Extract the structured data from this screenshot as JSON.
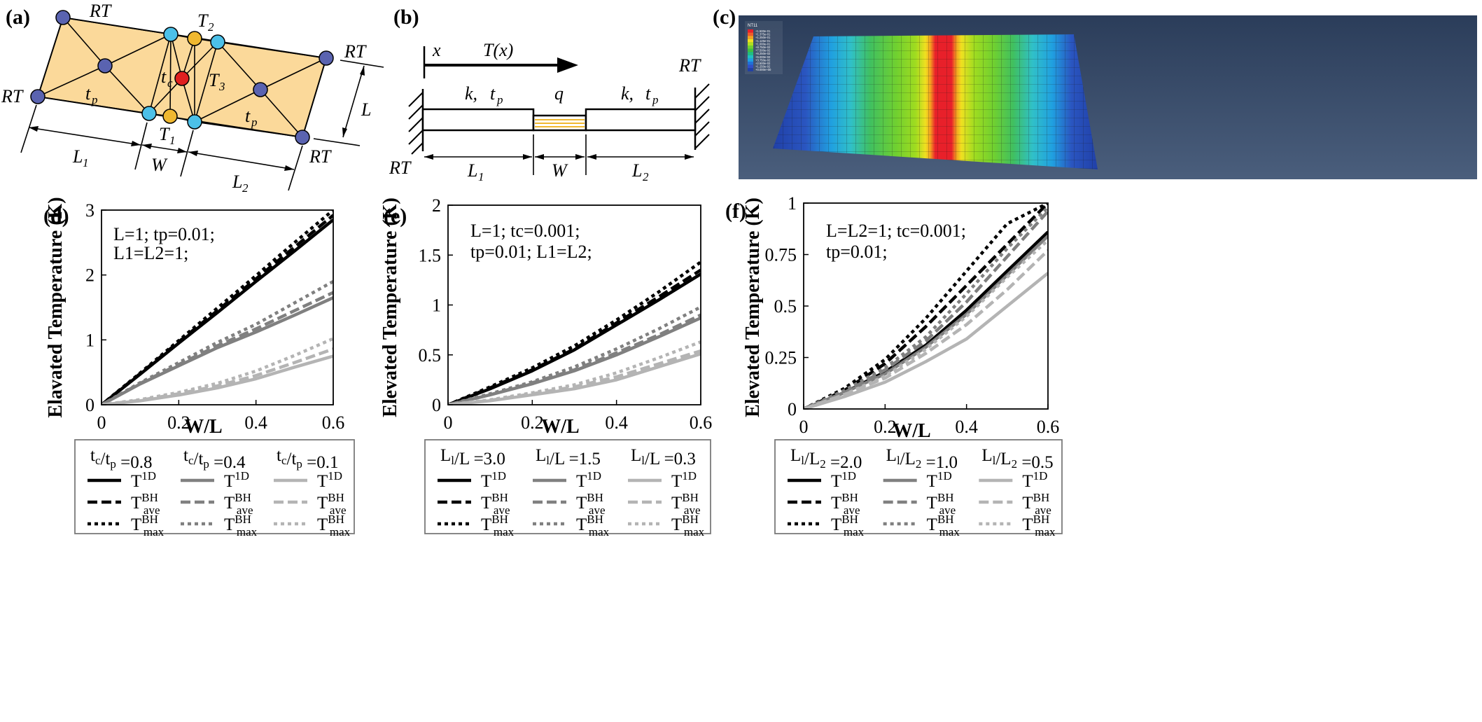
{
  "panels": {
    "a": {
      "label": "(a)",
      "texts": {
        "rt_top": "RT",
        "rt_left": "RT",
        "rt_right_top": "RT",
        "rt_right_bottom": "RT",
        "t2": "T",
        "t2_sub": "2",
        "t3": "T",
        "t3_sub": "3",
        "t1": "T",
        "t1_sub": "1",
        "tc": "t",
        "tc_sub": "c",
        "tp_left": "t",
        "tp_left_sub": "p",
        "tp_right": "t",
        "tp_right_sub": "p",
        "L": "L",
        "L1": "L",
        "L1_sub": "1",
        "W": "W",
        "L2": "L",
        "L2_sub": "2"
      }
    },
    "b": {
      "label": "(b)",
      "texts": {
        "x": "x",
        "Tx": "T(x)",
        "rt_right": "RT",
        "rt_left": "RT",
        "k_left": "k,",
        "tp_left": "t",
        "tp_left_sub": "p",
        "q": "q",
        "k_right": "k,",
        "tp_right": "t",
        "tp_right_sub": "p",
        "L1": "L",
        "L1_sub": "1",
        "W": "W",
        "L2": "L",
        "L2_sub": "2"
      }
    },
    "c": {
      "label": "(c)",
      "legend_title": "NT11",
      "legend_values": [
        "+1.500e-01",
        "+1.375e-01",
        "+1.250e-01",
        "+1.125e-01",
        "+1.000e-01",
        "+8.750e-02",
        "+7.500e-02",
        "+6.250e-02",
        "+5.000e-02",
        "+3.750e-02",
        "+2.500e-02",
        "+1.250e-02",
        "+0.000e+00"
      ],
      "legend_colors": [
        "#e8202a",
        "#f05a2a",
        "#f5a020",
        "#f0e020",
        "#b0e020",
        "#70d030",
        "#40c040",
        "#20c080",
        "#20c0c0",
        "#20a0e0",
        "#2070d8",
        "#3050c8",
        "#2040a8"
      ]
    }
  },
  "colors": {
    "black": "#000000",
    "mid": "#808080",
    "light": "#b4b4b4",
    "node_blue": "#5a63b0",
    "node_cyan": "#4cc0e8",
    "node_orange": "#f0b830",
    "node_red": "#e02020",
    "plate": "#fbd99a"
  },
  "chart_data": [
    {
      "id": "d",
      "type": "line",
      "label": "(d)",
      "xlabel": "W/L",
      "ylabel": "Elavated Temperature (K)",
      "xlim": [
        0,
        0.6
      ],
      "ylim": [
        0,
        3
      ],
      "xticks": [
        0,
        0.2,
        0.4,
        0.6
      ],
      "xtick_labels": [
        "0",
        "0.2",
        "0.4",
        "0.6"
      ],
      "yticks": [
        0,
        1,
        2,
        3
      ],
      "ytick_labels": [
        "0",
        "1",
        "2",
        "3"
      ],
      "annotation": [
        "L=1;   tp=0.01;",
        "L1=L2=1;"
      ],
      "x": [
        0,
        0.1,
        0.2,
        0.3,
        0.4,
        0.5,
        0.6
      ],
      "series": [
        {
          "name": "tc/tp=0.8 T1D",
          "group": "tc/tp =0.8",
          "color": "black",
          "dash": "solid",
          "values": [
            0,
            0.47,
            0.95,
            1.42,
            1.9,
            2.37,
            2.85
          ]
        },
        {
          "name": "tc/tp=0.8 Tave",
          "group": "tc/tp =0.8",
          "color": "black",
          "dash": "dash",
          "values": [
            0,
            0.48,
            0.97,
            1.45,
            1.94,
            2.43,
            2.92
          ]
        },
        {
          "name": "tc/tp=0.8 Tmax",
          "group": "tc/tp =0.8",
          "color": "black",
          "dash": "dot",
          "values": [
            0,
            0.49,
            0.99,
            1.49,
            1.99,
            2.5,
            3.0
          ]
        },
        {
          "name": "tc/tp=0.4 T1D",
          "group": "tc/tp =0.4",
          "color": "mid",
          "dash": "solid",
          "values": [
            0,
            0.32,
            0.6,
            0.88,
            1.12,
            1.38,
            1.65
          ]
        },
        {
          "name": "tc/tp=0.4 Tave",
          "group": "tc/tp =0.4",
          "color": "mid",
          "dash": "dash",
          "values": [
            0,
            0.33,
            0.62,
            0.91,
            1.17,
            1.45,
            1.73
          ]
        },
        {
          "name": "tc/tp=0.4 Tmax",
          "group": "tc/tp =0.4",
          "color": "mid",
          "dash": "dot",
          "values": [
            0,
            0.34,
            0.65,
            0.96,
            1.24,
            1.57,
            1.9
          ]
        },
        {
          "name": "tc/tp=0.1 T1D",
          "group": "tc/tp =0.1",
          "color": "light",
          "dash": "solid",
          "values": [
            0,
            0.06,
            0.15,
            0.26,
            0.4,
            0.58,
            0.75
          ]
        },
        {
          "name": "tc/tp=0.1 Tave",
          "group": "tc/tp =0.1",
          "color": "light",
          "dash": "dash",
          "values": [
            0,
            0.07,
            0.17,
            0.29,
            0.45,
            0.65,
            0.86
          ]
        },
        {
          "name": "tc/tp=0.1 Tmax",
          "group": "tc/tp =0.1",
          "color": "light",
          "dash": "dot",
          "values": [
            0,
            0.08,
            0.19,
            0.33,
            0.52,
            0.76,
            1.02
          ]
        }
      ],
      "legend": {
        "groups": [
          {
            "prefix": "t",
            "prefix_sub": "c",
            "mid": "/t",
            "mid_sub": "p",
            "value": "=0.8",
            "color": "black"
          },
          {
            "prefix": "t",
            "prefix_sub": "c",
            "mid": "/t",
            "mid_sub": "p",
            "value": "=0.4",
            "color": "mid"
          },
          {
            "prefix": "t",
            "prefix_sub": "c",
            "mid": "/t",
            "mid_sub": "p",
            "value": "=0.1",
            "color": "light"
          }
        ]
      }
    },
    {
      "id": "e",
      "type": "line",
      "label": "(e)",
      "xlabel": "W/L",
      "ylabel": "Elevated Temperature (K)",
      "xlim": [
        0,
        0.6
      ],
      "ylim": [
        0,
        2
      ],
      "xticks": [
        0,
        0.2,
        0.4,
        0.6
      ],
      "xtick_labels": [
        "0",
        "0.2",
        "0.4",
        "0.6"
      ],
      "yticks": [
        0,
        0.5,
        1,
        1.5,
        2
      ],
      "ytick_labels": [
        "0",
        "0.5",
        "1",
        "1.5",
        "2"
      ],
      "annotation": [
        "L=1;  tc=0.001;",
        "tp=0.01;  L1=L2;"
      ],
      "x": [
        0,
        0.1,
        0.2,
        0.3,
        0.4,
        0.5,
        0.6
      ],
      "series": [
        {
          "name": "L1/L=3.0 T1D",
          "group": "L1/L =3.0",
          "color": "black",
          "dash": "solid",
          "values": [
            0,
            0.16,
            0.34,
            0.55,
            0.8,
            1.05,
            1.31
          ]
        },
        {
          "name": "L1/L=3.0 Tave",
          "group": "L1/L =3.0",
          "color": "black",
          "dash": "dash",
          "values": [
            0,
            0.17,
            0.35,
            0.56,
            0.82,
            1.08,
            1.35
          ]
        },
        {
          "name": "L1/L=3.0 Tmax",
          "group": "L1/L =3.0",
          "color": "black",
          "dash": "dot",
          "values": [
            0,
            0.18,
            0.37,
            0.59,
            0.85,
            1.13,
            1.43
          ]
        },
        {
          "name": "L1/L=1.5 T1D",
          "group": "L1/L =1.5",
          "color": "mid",
          "dash": "solid",
          "values": [
            0,
            0.1,
            0.21,
            0.34,
            0.5,
            0.68,
            0.87
          ]
        },
        {
          "name": "L1/L=1.5 Tave",
          "group": "L1/L =1.5",
          "color": "mid",
          "dash": "dash",
          "values": [
            0,
            0.1,
            0.22,
            0.35,
            0.52,
            0.7,
            0.9
          ]
        },
        {
          "name": "L1/L=1.5 Tmax",
          "group": "L1/L =1.5",
          "color": "mid",
          "dash": "dot",
          "values": [
            0,
            0.11,
            0.23,
            0.38,
            0.56,
            0.76,
            0.98
          ]
        },
        {
          "name": "L1/L=0.3 T1D",
          "group": "L1/L =0.3",
          "color": "light",
          "dash": "solid",
          "values": [
            0,
            0.04,
            0.1,
            0.16,
            0.25,
            0.38,
            0.51
          ]
        },
        {
          "name": "L1/L=0.3 Tave",
          "group": "L1/L =0.3",
          "color": "light",
          "dash": "dash",
          "values": [
            0,
            0.045,
            0.11,
            0.18,
            0.28,
            0.41,
            0.54
          ]
        },
        {
          "name": "L1/L=0.3 Tmax",
          "group": "L1/L =0.3",
          "color": "light",
          "dash": "dot",
          "values": [
            0,
            0.05,
            0.12,
            0.2,
            0.32,
            0.47,
            0.63
          ]
        }
      ],
      "legend": {
        "groups": [
          {
            "prefix": "L",
            "prefix_sub": "l",
            "mid": "/L",
            "mid_sub": "",
            "value": "=3.0",
            "color": "black"
          },
          {
            "prefix": "L",
            "prefix_sub": "l",
            "mid": "/L",
            "mid_sub": "",
            "value": "=1.5",
            "color": "mid"
          },
          {
            "prefix": "L",
            "prefix_sub": "l",
            "mid": "/L",
            "mid_sub": "",
            "value": "=0.3",
            "color": "light"
          }
        ]
      }
    },
    {
      "id": "f",
      "type": "line",
      "label": "(f)",
      "xlabel": "W/L",
      "ylabel": "Elevated Temperature (K)",
      "xlim": [
        0,
        0.6
      ],
      "ylim": [
        0,
        1
      ],
      "xticks": [
        0,
        0.2,
        0.4,
        0.6
      ],
      "xtick_labels": [
        "0",
        "0.2",
        "0.4",
        "0.6"
      ],
      "yticks": [
        0,
        0.25,
        0.5,
        0.75,
        1
      ],
      "ytick_labels": [
        "0",
        "0.25",
        "0.5",
        "0.75",
        "1"
      ],
      "annotation": [
        "L=L2=1;  tc=0.001;",
        "tp=0.01;"
      ],
      "x": [
        0,
        0.1,
        0.2,
        0.3,
        0.4,
        0.5,
        0.6
      ],
      "series": [
        {
          "name": "L1/L2=2.0 T1D",
          "group": "L1/L2=2.0",
          "color": "black",
          "dash": "solid",
          "values": [
            0,
            0.08,
            0.18,
            0.31,
            0.48,
            0.67,
            0.86
          ]
        },
        {
          "name": "L1/L2=2.0 Tave",
          "group": "L1/L2=2.0",
          "color": "black",
          "dash": "dash",
          "values": [
            0,
            0.09,
            0.22,
            0.4,
            0.6,
            0.8,
            1.0
          ]
        },
        {
          "name": "L1/L2=2.0 Tmax",
          "group": "L1/L2=2.0",
          "color": "black",
          "dash": "dot",
          "values": [
            0,
            0.1,
            0.24,
            0.44,
            0.67,
            0.9,
            1.0
          ]
        },
        {
          "name": "L1/L2=1.0 T1D",
          "group": "L1/L2=1.0",
          "color": "mid",
          "dash": "solid",
          "values": [
            0,
            0.08,
            0.17,
            0.3,
            0.46,
            0.65,
            0.84
          ]
        },
        {
          "name": "L1/L2=1.0 Tave",
          "group": "L1/L2=1.0",
          "color": "mid",
          "dash": "dash",
          "values": [
            0,
            0.08,
            0.19,
            0.33,
            0.52,
            0.74,
            0.96
          ]
        },
        {
          "name": "L1/L2=1.0 Tmax",
          "group": "L1/L2=1.0",
          "color": "mid",
          "dash": "dot",
          "values": [
            0,
            0.09,
            0.2,
            0.35,
            0.56,
            0.78,
            0.98
          ]
        },
        {
          "name": "L1/L2=0.5 T1D",
          "group": "L1/L2=0.5",
          "color": "light",
          "dash": "solid",
          "values": [
            0,
            0.06,
            0.13,
            0.23,
            0.34,
            0.5,
            0.66
          ]
        },
        {
          "name": "L1/L2=0.5 Tave",
          "group": "L1/L2=0.5",
          "color": "light",
          "dash": "dash",
          "values": [
            0,
            0.07,
            0.15,
            0.27,
            0.41,
            0.58,
            0.77
          ]
        },
        {
          "name": "L1/L2=0.5 Tmax",
          "group": "L1/L2=0.5",
          "color": "light",
          "dash": "dot",
          "values": [
            0,
            0.07,
            0.16,
            0.29,
            0.45,
            0.64,
            0.82
          ]
        }
      ],
      "legend": {
        "groups": [
          {
            "prefix": "L",
            "prefix_sub": "l",
            "mid": "/L",
            "mid_sub": "2",
            "value": "=2.0",
            "color": "black"
          },
          {
            "prefix": "L",
            "prefix_sub": "l",
            "mid": "/L",
            "mid_sub": "2",
            "value": "=1.0",
            "color": "mid"
          },
          {
            "prefix": "L",
            "prefix_sub": "l",
            "mid": "/L",
            "mid_sub": "2",
            "value": "=0.5",
            "color": "light"
          }
        ]
      }
    }
  ],
  "legend_rows": [
    {
      "base": "T",
      "sup": "1D",
      "sub": "",
      "dash": "solid"
    },
    {
      "base": "T",
      "sup": "BH",
      "sub": "ave",
      "dash": "dash"
    },
    {
      "base": "T",
      "sup": "BH",
      "sub": "max",
      "dash": "dot"
    }
  ]
}
